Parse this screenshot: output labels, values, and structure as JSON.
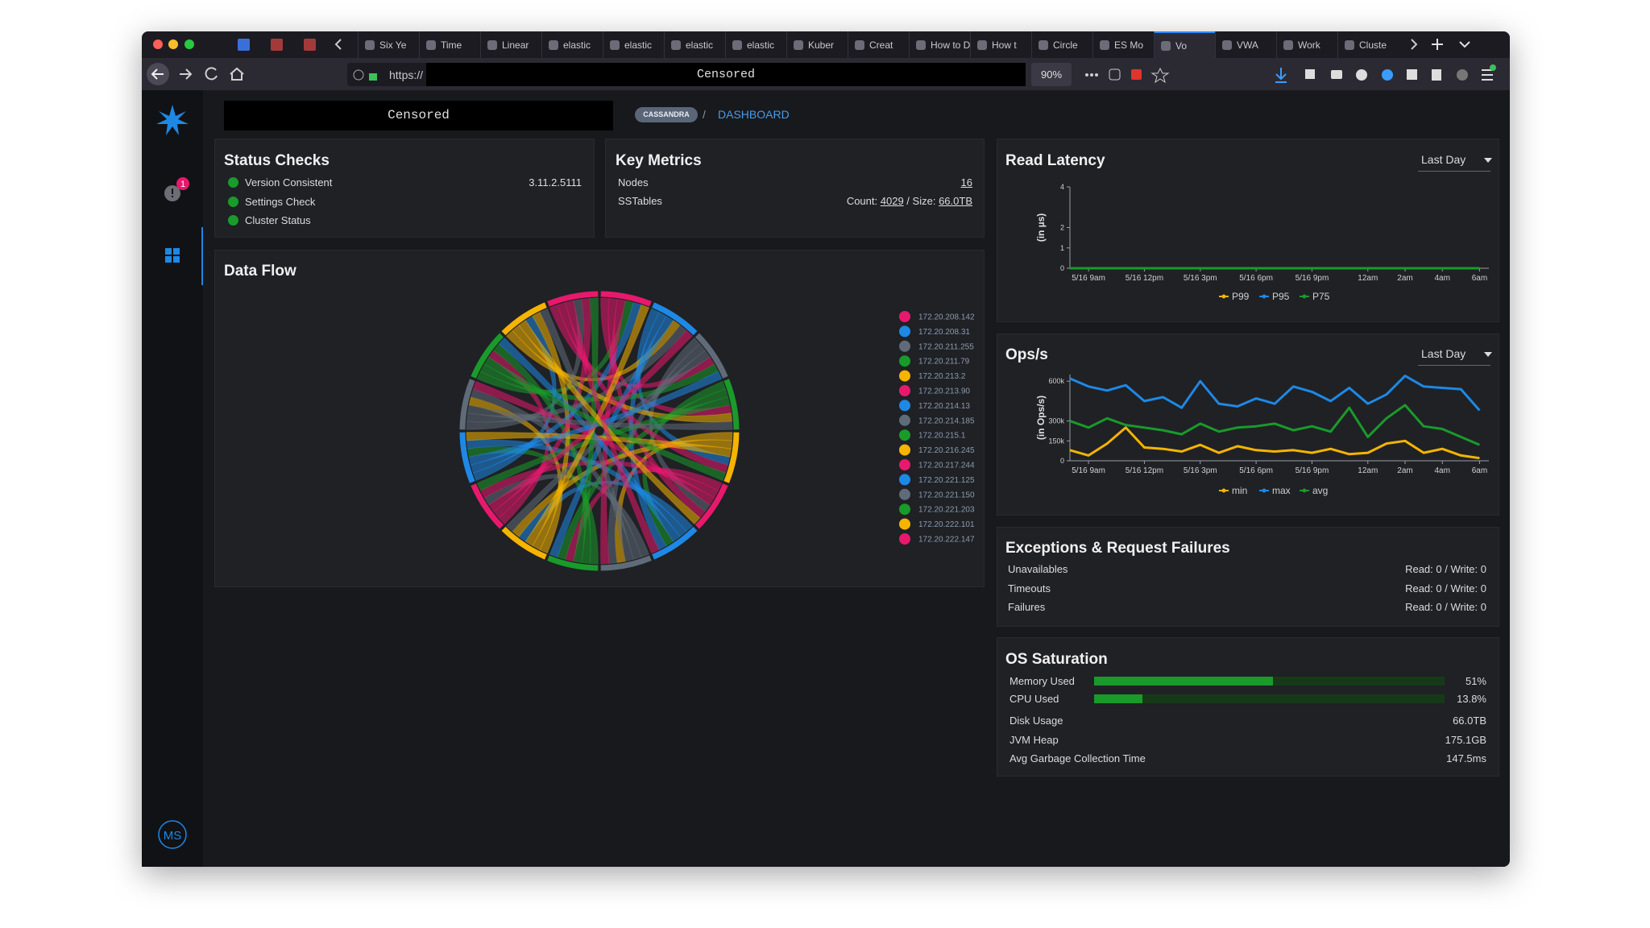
{
  "browser": {
    "tabs": [
      "Six Ye",
      "Time",
      "Linear",
      "elastic",
      "elastic",
      "elastic",
      "elastic",
      "Kuber",
      "Creat",
      "How to De",
      "How t",
      "Circle",
      "ES Mo",
      "Vo",
      "VWA",
      "Work",
      "Cluste"
    ],
    "active_tab": 13,
    "url_scheme": "https://",
    "address": "Censored",
    "zoom": "90%"
  },
  "sidebar": {
    "alert_count": "1",
    "user_initials": "MS"
  },
  "header": {
    "cluster": "Censored",
    "badge": "CASSANDRA",
    "separator": "/",
    "page": "DASHBOARD"
  },
  "status_checks": {
    "title": "Status Checks",
    "items": [
      {
        "label": "Version Consistent",
        "value": "3.11.2.5111"
      },
      {
        "label": "Settings Check"
      },
      {
        "label": "Cluster Status"
      }
    ]
  },
  "key_metrics": {
    "title": "Key Metrics",
    "nodes": {
      "label": "Nodes",
      "value": "16"
    },
    "sstables": {
      "label": "SSTables",
      "count_label": "Count:",
      "count": "4029",
      "separator": "/",
      "size_label": "Size:",
      "size": "66.0TB"
    }
  },
  "data_flow": {
    "title": "Data Flow",
    "nodes": [
      {
        "label": "172.20.208.142",
        "color": "#e8186d"
      },
      {
        "label": "172.20.208.31",
        "color": "#1e88e5"
      },
      {
        "label": "172.20.211.255",
        "color": "#5f6b78"
      },
      {
        "label": "172.20.211.79",
        "color": "#1a9a2a"
      },
      {
        "label": "172.20.213.2",
        "color": "#f5b400"
      },
      {
        "label": "172.20.213.90",
        "color": "#e8186d"
      },
      {
        "label": "172.20.214.13",
        "color": "#1e88e5"
      },
      {
        "label": "172.20.214.185",
        "color": "#5f6b78"
      },
      {
        "label": "172.20.215.1",
        "color": "#1a9a2a"
      },
      {
        "label": "172.20.216.245",
        "color": "#f5b400"
      },
      {
        "label": "172.20.217.244",
        "color": "#e8186d"
      },
      {
        "label": "172.20.221.125",
        "color": "#1e88e5"
      },
      {
        "label": "172.20.221.150",
        "color": "#5f6b78"
      },
      {
        "label": "172.20.221.203",
        "color": "#1a9a2a"
      },
      {
        "label": "172.20.222.101",
        "color": "#f5b400"
      },
      {
        "label": "172.20.222.147",
        "color": "#e8186d"
      }
    ]
  },
  "read_latency": {
    "type": "line",
    "title": "Read Latency",
    "range": "Last Day",
    "y_label": "(in µs)",
    "x": [
      -1,
      0,
      1,
      2,
      3,
      4,
      5,
      6,
      7,
      8,
      9,
      10,
      11,
      12,
      13,
      14,
      15,
      16,
      17,
      18,
      19,
      20,
      21
    ],
    "xlim": [
      -1,
      21.5
    ],
    "xticks": [
      {
        "value": 0,
        "label": "5/16 9am"
      },
      {
        "value": 3,
        "label": "5/16 12pm"
      },
      {
        "value": 6,
        "label": "5/16 3pm"
      },
      {
        "value": 9,
        "label": "5/16 6pm"
      },
      {
        "value": 12,
        "label": "5/16 9pm"
      },
      {
        "value": 15,
        "label": "12am"
      },
      {
        "value": 17,
        "label": "2am"
      },
      {
        "value": 19,
        "label": "4am"
      },
      {
        "value": 21,
        "label": "6am"
      }
    ],
    "ylim": [
      0,
      4
    ],
    "yticks": [
      0,
      1,
      2,
      4
    ],
    "series": [
      {
        "name": "P99",
        "color": "#f5b400",
        "values": [
          0,
          0,
          0,
          0,
          0,
          0,
          0,
          0,
          0,
          0,
          0,
          0,
          0,
          0,
          0,
          0,
          0,
          0,
          0,
          0,
          0,
          0,
          0
        ]
      },
      {
        "name": "P95",
        "color": "#1e88e5",
        "values": [
          0,
          0,
          0,
          0,
          0,
          0,
          0,
          0,
          0,
          0,
          0,
          0,
          0,
          0,
          0,
          0,
          0,
          0,
          0,
          0,
          0,
          0,
          0
        ]
      },
      {
        "name": "P75",
        "color": "#1a9a2a",
        "values": [
          0,
          0,
          0,
          0,
          0,
          0,
          0,
          0,
          0,
          0,
          0,
          0,
          0,
          0,
          0,
          0,
          0,
          0,
          0,
          0,
          0,
          0,
          0
        ]
      }
    ]
  },
  "ops": {
    "type": "line",
    "title": "Ops/s",
    "range": "Last Day",
    "y_label": "(in Ops/s)",
    "x": [
      -1,
      0,
      1,
      2,
      3,
      4,
      5,
      6,
      7,
      8,
      9,
      10,
      11,
      12,
      13,
      14,
      15,
      16,
      17,
      18,
      19,
      20,
      21
    ],
    "xlim": [
      -1,
      21.5
    ],
    "xticks": [
      {
        "value": 0,
        "label": "5/16 9am"
      },
      {
        "value": 3,
        "label": "5/16 12pm"
      },
      {
        "value": 6,
        "label": "5/16 3pm"
      },
      {
        "value": 9,
        "label": "5/16 6pm"
      },
      {
        "value": 12,
        "label": "5/16 9pm"
      },
      {
        "value": 15,
        "label": "12am"
      },
      {
        "value": 17,
        "label": "2am"
      },
      {
        "value": 19,
        "label": "4am"
      },
      {
        "value": 21,
        "label": "6am"
      }
    ],
    "ylim": [
      0,
      650000
    ],
    "yticks": [
      0,
      {
        "value": 150000,
        "label": "150k"
      },
      {
        "value": 300000,
        "label": "300k"
      },
      {
        "value": 600000,
        "label": "600k"
      }
    ],
    "series": [
      {
        "name": "min",
        "color": "#f5b400",
        "values": [
          80000,
          40000,
          130000,
          250000,
          100000,
          90000,
          70000,
          120000,
          60000,
          110000,
          80000,
          70000,
          80000,
          60000,
          90000,
          50000,
          60000,
          130000,
          150000,
          60000,
          90000,
          40000,
          20000
        ]
      },
      {
        "name": "max",
        "color": "#1e88e5",
        "values": [
          620000,
          560000,
          530000,
          570000,
          450000,
          480000,
          400000,
          600000,
          430000,
          410000,
          470000,
          430000,
          560000,
          520000,
          450000,
          550000,
          430000,
          500000,
          640000,
          560000,
          550000,
          540000,
          380000
        ]
      },
      {
        "name": "avg",
        "color": "#1a9a2a",
        "values": [
          300000,
          250000,
          320000,
          270000,
          250000,
          230000,
          200000,
          280000,
          220000,
          250000,
          260000,
          280000,
          230000,
          260000,
          220000,
          400000,
          180000,
          320000,
          420000,
          260000,
          240000,
          180000,
          120000
        ]
      }
    ]
  },
  "exceptions": {
    "title": "Exceptions & Request Failures",
    "rows": [
      {
        "label": "Unavailables",
        "value": "Read: 0 / Write: 0"
      },
      {
        "label": "Timeouts",
        "value": "Read: 0 / Write: 0"
      },
      {
        "label": "Failures",
        "value": "Read: 0 / Write: 0"
      }
    ]
  },
  "os_saturation": {
    "title": "OS Saturation",
    "xlim": [
      0,
      100
    ],
    "bars": [
      {
        "label": "Memory Used",
        "value": 51,
        "value_label": "51%"
      },
      {
        "label": "CPU Used",
        "value": 13.8,
        "value_label": "13.8%"
      }
    ],
    "stats": [
      {
        "label": "Disk Usage",
        "value": "66.0TB"
      },
      {
        "label": "JVM Heap",
        "value": "175.1GB"
      },
      {
        "label": "Avg Garbage Collection Time",
        "value": "147.5ms"
      }
    ]
  }
}
